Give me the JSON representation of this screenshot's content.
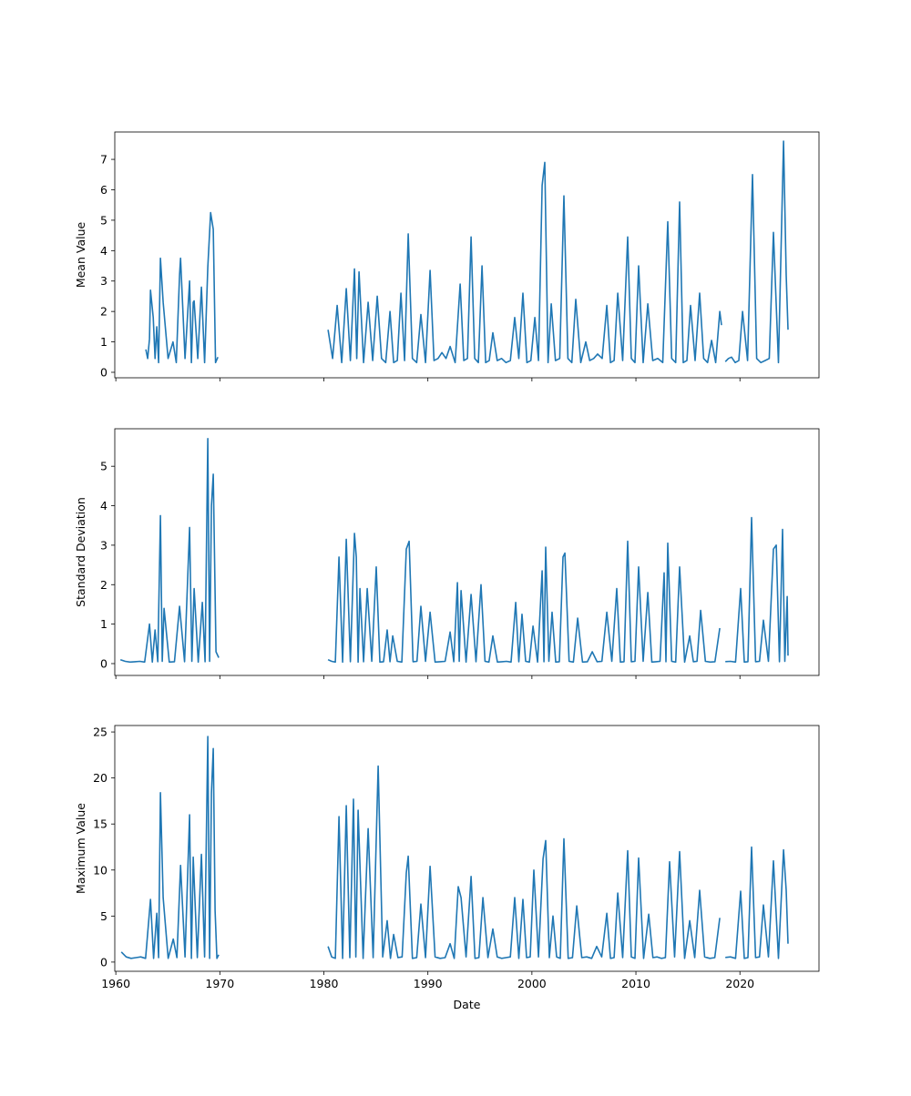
{
  "chart_data": [
    {
      "type": "line",
      "ylabel": "Mean Value",
      "xlabel": "",
      "ylim": [
        -0.18,
        7.9
      ],
      "xlim": [
        1959.9,
        2027.6
      ],
      "yticks": [
        0,
        1,
        2,
        3,
        4,
        5,
        6,
        7
      ],
      "xticks": [
        1960,
        1970,
        1980,
        1990,
        2000,
        2010,
        2020
      ],
      "show_xticklabels": false,
      "color": "#1f77b4",
      "trough": 0.4,
      "segments": [
        [
          [
            1962.89,
            0.75
          ],
          [
            1963.24,
            1.1
          ],
          [
            1963.33,
            2.7
          ],
          [
            1963.6,
            1.8
          ],
          [
            1963.94,
            1.5
          ],
          [
            1964.29,
            3.75
          ],
          [
            1964.55,
            2.3
          ],
          [
            1965.5,
            1.0
          ],
          [
            1966.13,
            3.2
          ],
          [
            1966.22,
            3.75
          ],
          [
            1967.09,
            3.0
          ],
          [
            1967.44,
            2.3
          ],
          [
            1967.53,
            2.35
          ],
          [
            1968.23,
            2.8
          ],
          [
            1968.84,
            3.45
          ],
          [
            1969.11,
            5.25
          ],
          [
            1969.37,
            4.7
          ],
          [
            1969.81,
            0.5
          ]
        ],
        [
          [
            1980.4,
            1.4
          ],
          [
            1981.28,
            2.2
          ],
          [
            1982.15,
            2.75
          ],
          [
            1982.94,
            3.4
          ],
          [
            1983.38,
            3.3
          ],
          [
            1984.26,
            2.3
          ],
          [
            1985.13,
            2.5
          ],
          [
            1986.36,
            2.0
          ],
          [
            1987.41,
            2.6
          ],
          [
            1988.11,
            4.55
          ],
          [
            1989.33,
            1.9
          ],
          [
            1990.21,
            3.35
          ],
          [
            1991.35,
            0.65
          ],
          [
            1992.14,
            0.85
          ],
          [
            1993.1,
            2.9
          ],
          [
            1994.15,
            4.45
          ],
          [
            1995.2,
            3.5
          ],
          [
            1996.25,
            1.3
          ],
          [
            1998.35,
            1.8
          ],
          [
            1999.14,
            2.6
          ],
          [
            2000.28,
            1.8
          ],
          [
            2000.98,
            6.15
          ],
          [
            2001.24,
            6.9
          ],
          [
            2001.86,
            2.25
          ],
          [
            2003.08,
            5.8
          ],
          [
            2004.22,
            2.4
          ],
          [
            2005.18,
            1.0
          ],
          [
            2006.32,
            0.6
          ],
          [
            2007.2,
            2.2
          ],
          [
            2008.25,
            2.6
          ],
          [
            2009.21,
            4.45
          ],
          [
            2010.26,
            3.5
          ],
          [
            2011.14,
            2.25
          ],
          [
            2013.06,
            4.95
          ],
          [
            2014.2,
            5.6
          ],
          [
            2015.25,
            2.2
          ],
          [
            2016.13,
            2.6
          ],
          [
            2017.27,
            1.05
          ],
          [
            2018.06,
            2.0
          ],
          [
            2018.23,
            1.55
          ]
        ],
        [
          [
            2018.6,
            0.35
          ],
          [
            2019.19,
            0.5
          ],
          [
            2020.25,
            2.0
          ],
          [
            2021.21,
            6.5
          ],
          [
            2023.22,
            4.6
          ],
          [
            2024.19,
            7.6
          ],
          [
            2024.45,
            3.2
          ],
          [
            2024.62,
            1.4
          ]
        ]
      ]
    },
    {
      "type": "line",
      "ylabel": "Standard Deviation",
      "xlabel": "",
      "ylim": [
        -0.3,
        5.95
      ],
      "xlim": [
        1959.9,
        2027.6
      ],
      "yticks": [
        0,
        1,
        2,
        3,
        4,
        5
      ],
      "xticks": [
        1960,
        1970,
        1980,
        1990,
        2000,
        2010,
        2020
      ],
      "show_xticklabels": false,
      "color": "#1f77b4",
      "trough": 0.05,
      "segments": [
        [
          [
            1960.44,
            0.1
          ],
          [
            1963.24,
            1.0
          ],
          [
            1963.77,
            0.85
          ],
          [
            1964.29,
            3.75
          ],
          [
            1964.64,
            1.4
          ],
          [
            1966.13,
            1.45
          ],
          [
            1967.09,
            3.45
          ],
          [
            1967.53,
            1.9
          ],
          [
            1968.32,
            1.55
          ],
          [
            1968.84,
            5.7
          ],
          [
            1969.19,
            4.0
          ],
          [
            1969.37,
            4.8
          ],
          [
            1969.63,
            0.3
          ],
          [
            1969.89,
            0.15
          ]
        ],
        [
          [
            1980.4,
            0.1
          ],
          [
            1981.45,
            2.7
          ],
          [
            1982.15,
            3.15
          ],
          [
            1982.94,
            3.3
          ],
          [
            1983.12,
            2.7
          ],
          [
            1983.47,
            1.9
          ],
          [
            1984.17,
            1.9
          ],
          [
            1985.04,
            2.45
          ],
          [
            1986.09,
            0.85
          ],
          [
            1986.62,
            0.7
          ],
          [
            1987.93,
            2.9
          ],
          [
            1988.2,
            3.1
          ],
          [
            1989.33,
            1.45
          ],
          [
            1990.21,
            1.3
          ],
          [
            1992.14,
            0.8
          ],
          [
            1992.84,
            2.05
          ],
          [
            1993.19,
            1.85
          ],
          [
            1994.15,
            1.75
          ],
          [
            1995.11,
            2.0
          ],
          [
            1996.25,
            0.7
          ],
          [
            1998.44,
            1.55
          ],
          [
            1999.05,
            1.25
          ],
          [
            2000.11,
            0.95
          ],
          [
            2000.98,
            2.35
          ],
          [
            2001.33,
            2.95
          ],
          [
            2001.94,
            1.3
          ],
          [
            2002.99,
            2.7
          ],
          [
            2003.17,
            2.8
          ],
          [
            2004.4,
            1.15
          ],
          [
            2005.8,
            0.3
          ],
          [
            2007.2,
            1.3
          ],
          [
            2008.16,
            1.9
          ],
          [
            2009.21,
            3.1
          ],
          [
            2010.26,
            2.45
          ],
          [
            2011.14,
            1.8
          ],
          [
            2012.71,
            2.3
          ],
          [
            2013.06,
            3.05
          ],
          [
            2014.2,
            2.45
          ],
          [
            2015.17,
            0.7
          ],
          [
            2016.22,
            1.35
          ],
          [
            2018.06,
            0.9
          ]
        ],
        [
          [
            2018.6,
            0.05
          ],
          [
            2020.07,
            1.9
          ],
          [
            2021.12,
            3.7
          ],
          [
            2022.26,
            1.1
          ],
          [
            2023.22,
            2.9
          ],
          [
            2023.49,
            3.0
          ],
          [
            2024.1,
            3.4
          ],
          [
            2024.54,
            1.7
          ],
          [
            2024.62,
            0.2
          ]
        ]
      ]
    },
    {
      "type": "line",
      "ylabel": "Maximum Value",
      "xlabel": "Date",
      "ylim": [
        -1.0,
        25.7
      ],
      "xlim": [
        1959.9,
        2027.6
      ],
      "yticks": [
        0,
        5,
        10,
        15,
        20,
        25
      ],
      "xticks": [
        1960,
        1970,
        1980,
        1990,
        2000,
        2010,
        2020
      ],
      "show_xticklabels": true,
      "color": "#1f77b4",
      "trough": 0.5,
      "segments": [
        [
          [
            1960.53,
            1.1
          ],
          [
            1963.33,
            6.8
          ],
          [
            1963.94,
            5.3
          ],
          [
            1964.29,
            18.4
          ],
          [
            1964.55,
            7.0
          ],
          [
            1965.52,
            2.5
          ],
          [
            1966.22,
            10.5
          ],
          [
            1967.09,
            16.0
          ],
          [
            1967.44,
            11.4
          ],
          [
            1968.23,
            11.7
          ],
          [
            1968.84,
            24.5
          ],
          [
            1969.19,
            18.4
          ],
          [
            1969.37,
            23.2
          ],
          [
            1969.54,
            5.6
          ],
          [
            1969.89,
            0.8
          ]
        ],
        [
          [
            1980.4,
            1.7
          ],
          [
            1981.45,
            15.8
          ],
          [
            1982.15,
            17.0
          ],
          [
            1982.85,
            17.7
          ],
          [
            1983.29,
            16.5
          ],
          [
            1984.26,
            14.5
          ],
          [
            1985.22,
            21.3
          ],
          [
            1986.09,
            4.5
          ],
          [
            1986.71,
            3.0
          ],
          [
            1987.93,
            9.7
          ],
          [
            1988.11,
            11.5
          ],
          [
            1989.33,
            6.3
          ],
          [
            1990.21,
            10.4
          ],
          [
            1992.14,
            2.0
          ],
          [
            1992.92,
            8.2
          ],
          [
            1993.19,
            7.0
          ],
          [
            1994.15,
            9.3
          ],
          [
            1995.29,
            7.0
          ],
          [
            1996.25,
            3.6
          ],
          [
            1998.35,
            7.0
          ],
          [
            1999.14,
            6.8
          ],
          [
            2000.19,
            10.0
          ],
          [
            2001.07,
            11.2
          ],
          [
            2001.33,
            13.2
          ],
          [
            2002.03,
            5.0
          ],
          [
            2003.08,
            13.4
          ],
          [
            2004.31,
            6.1
          ],
          [
            2006.23,
            1.7
          ],
          [
            2007.2,
            5.3
          ],
          [
            2008.25,
            7.5
          ],
          [
            2009.21,
            12.1
          ],
          [
            2010.26,
            11.3
          ],
          [
            2011.23,
            5.2
          ],
          [
            2013.24,
            10.9
          ],
          [
            2014.2,
            12.0
          ],
          [
            2015.17,
            4.5
          ],
          [
            2016.13,
            7.8
          ],
          [
            2018.06,
            4.8
          ]
        ],
        [
          [
            2018.6,
            0.5
          ],
          [
            2020.07,
            7.7
          ],
          [
            2021.12,
            12.5
          ],
          [
            2022.26,
            6.2
          ],
          [
            2023.22,
            11.0
          ],
          [
            2024.19,
            12.2
          ],
          [
            2024.45,
            7.8
          ],
          [
            2024.62,
            2.0
          ]
        ]
      ]
    }
  ]
}
